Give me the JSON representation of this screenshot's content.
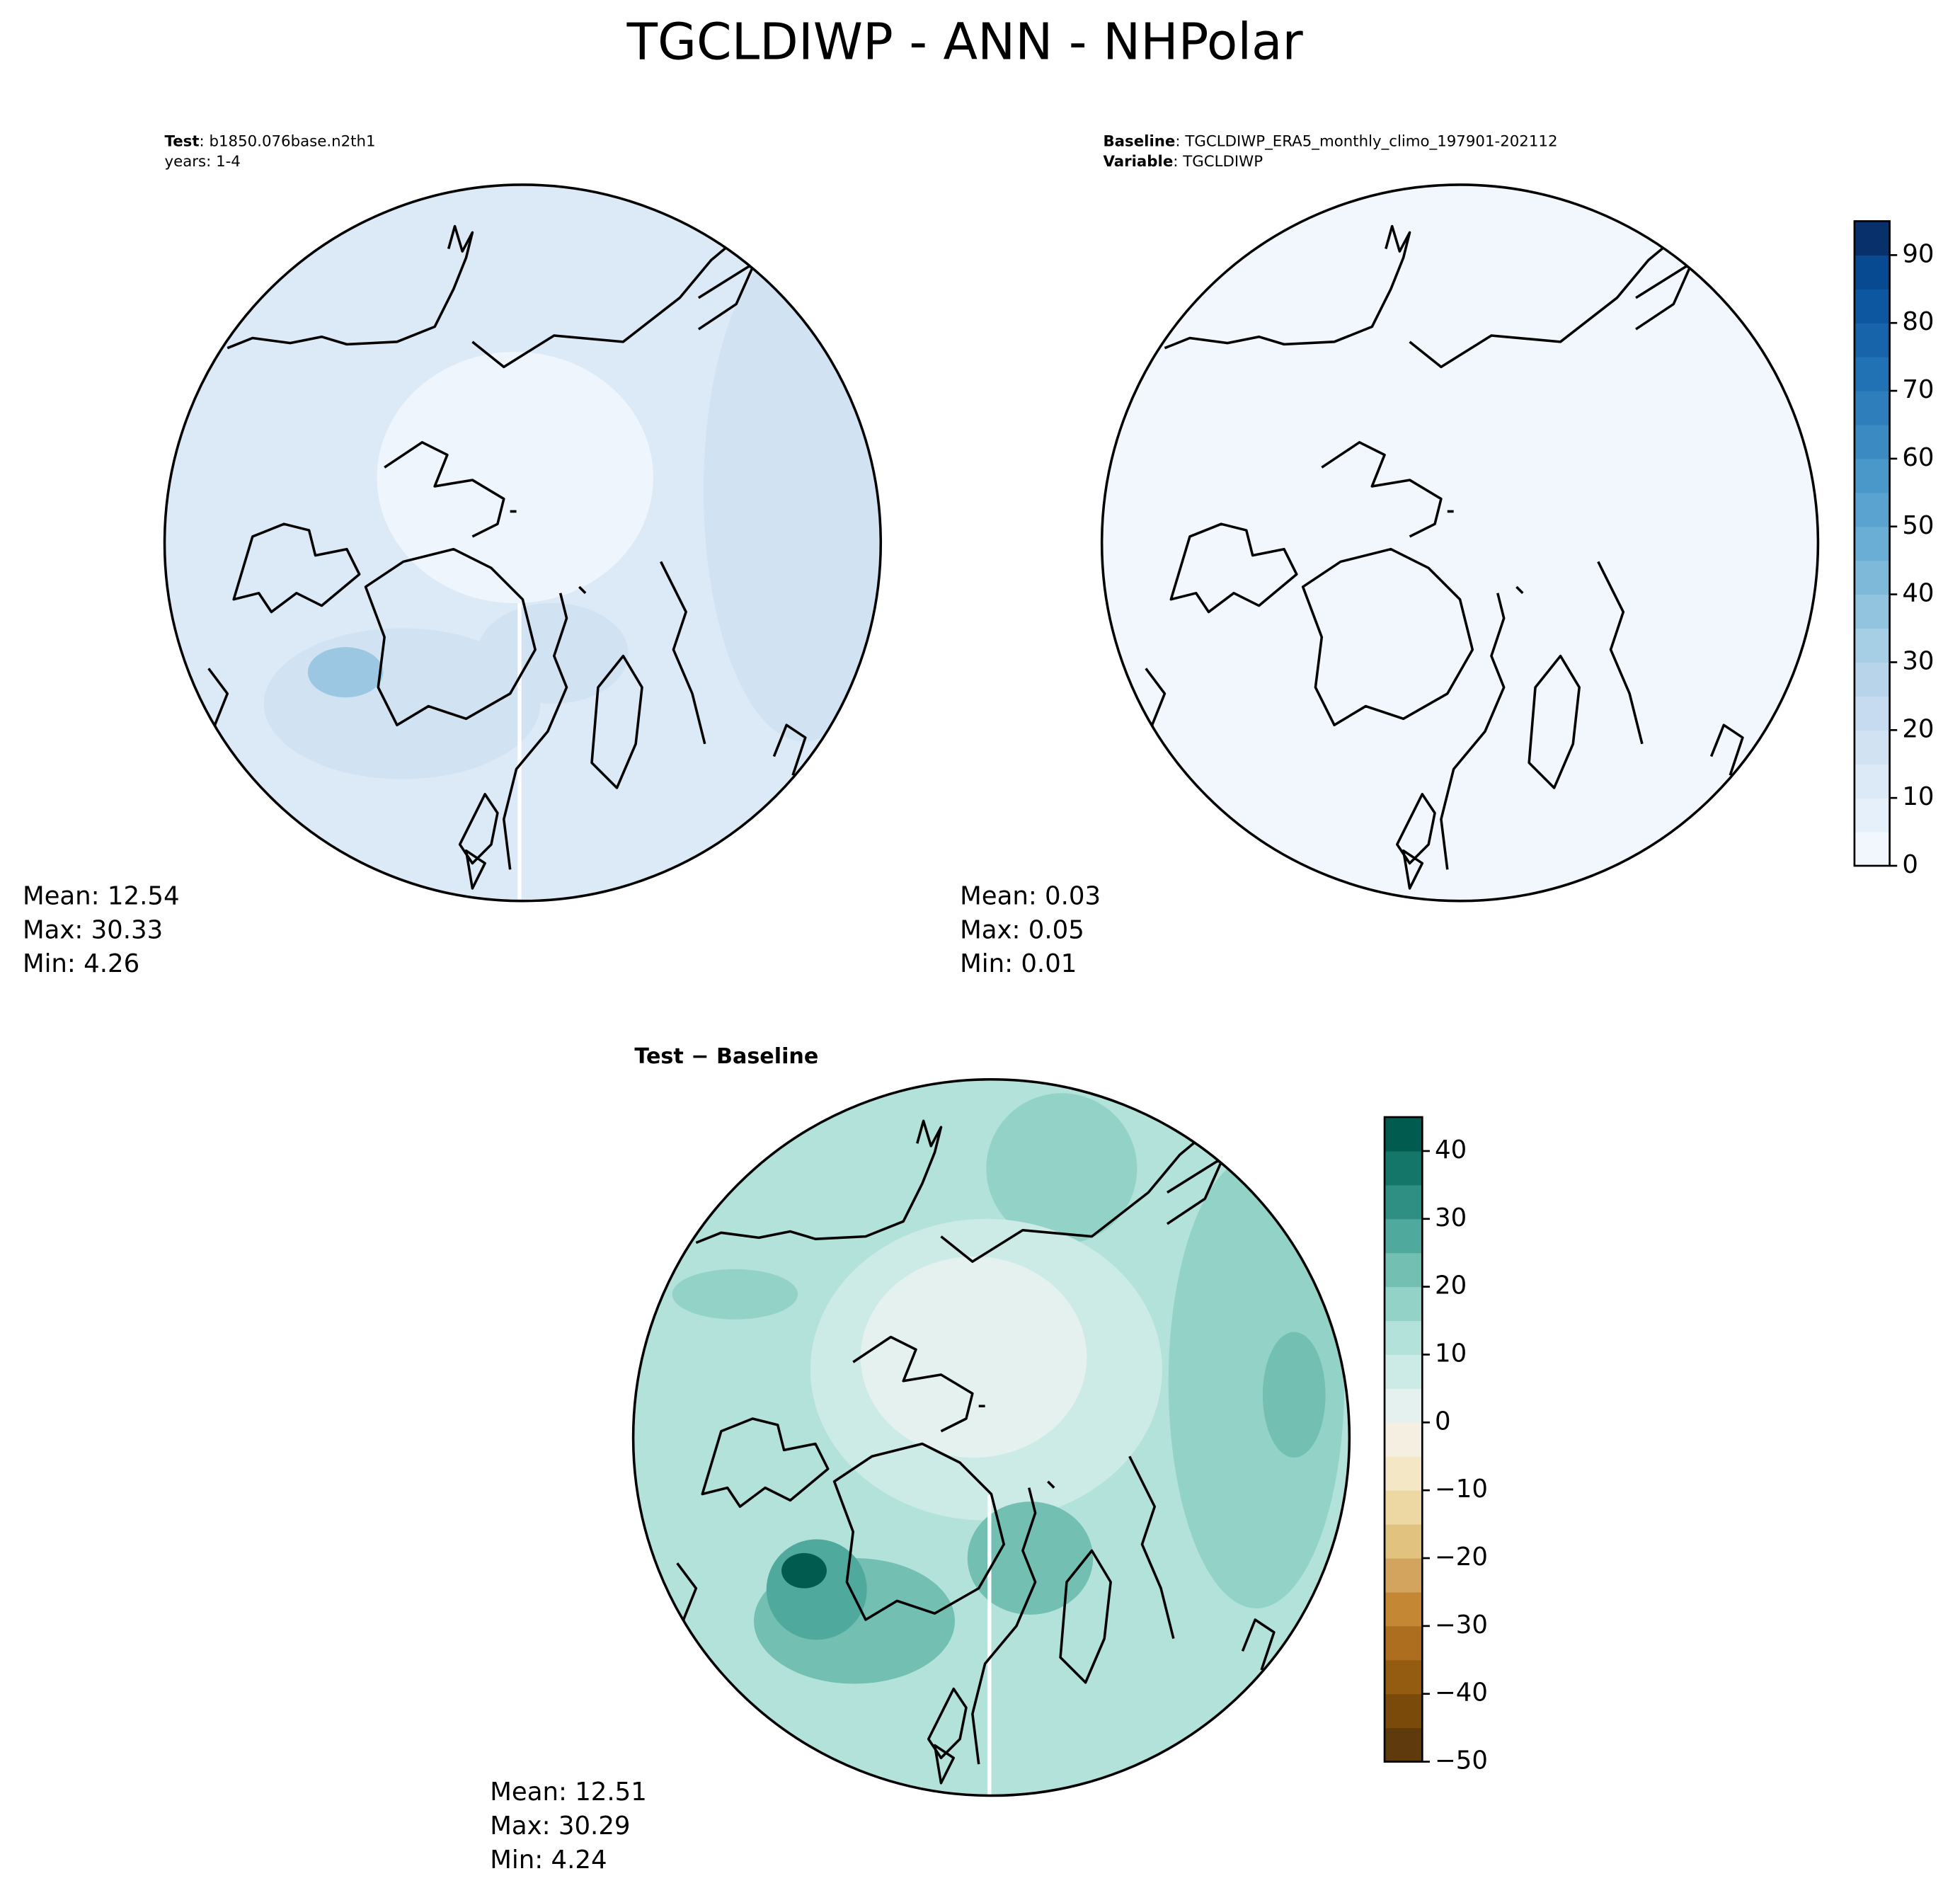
{
  "title": "TGCLDIWP - ANN - NHPolar",
  "panels": [
    {
      "header": [
        {
          "label": "Test",
          "text": ": b1850.076base.n2th1"
        },
        {
          "text": "years: 1-4"
        }
      ],
      "stats": [
        "Mean: 12.54",
        "Max: 30.33",
        "Min:  4.26"
      ]
    },
    {
      "header": [
        {
          "label": "Baseline",
          "text": ": TGCLDIWP_ERA5_monthly_climo_197901-202112"
        },
        {
          "label": "Variable",
          "text": ": TGCLDIWP"
        }
      ],
      "stats": [
        "Mean:  0.03",
        "Max:  0.05",
        "Min:  0.01"
      ]
    },
    {
      "header": [
        {
          "label": "Test − Baseline"
        }
      ],
      "stats": [
        "Mean: 12.51",
        "Max: 30.29",
        "Min:  4.24"
      ]
    }
  ],
  "colorbars": [
    {
      "ylim": [
        0,
        95
      ],
      "yticks": [
        0,
        10,
        20,
        30,
        40,
        50,
        60,
        70,
        80,
        90
      ],
      "colors": [
        "#f1f7fd",
        "#e6f0fa",
        "#dce9f6",
        "#d1e2f3",
        "#c6dbef",
        "#b7d4ea",
        "#a6cee4",
        "#93c4df",
        "#7fb9da",
        "#6aaed6",
        "#5aa2cf",
        "#4a98c9",
        "#3b8bc2",
        "#2e7ebc",
        "#2171b5",
        "#1764ab",
        "#0d57a1",
        "#084a91",
        "#08306b"
      ]
    },
    {
      "ylim": [
        -50,
        45
      ],
      "yticks": [
        {
          "value": -50,
          "label": "−50"
        },
        {
          "value": -40,
          "label": "−40"
        },
        {
          "value": -30,
          "label": "−30"
        },
        {
          "value": -20,
          "label": "−20"
        },
        {
          "value": -10,
          "label": "−10"
        },
        0,
        10,
        20,
        30,
        40
      ],
      "colors": [
        "#5f3a0c",
        "#7a4a0b",
        "#935c10",
        "#ad6e1f",
        "#c48834",
        "#d3a45d",
        "#e1c27e",
        "#edd7a3",
        "#f4e7c6",
        "#f5efe2",
        "#e4f1ef",
        "#cdebe6",
        "#b2e2da",
        "#93d3c7",
        "#73c0b3",
        "#50a99d",
        "#2f8f83",
        "#147669",
        "#015c4f"
      ]
    }
  ]
}
